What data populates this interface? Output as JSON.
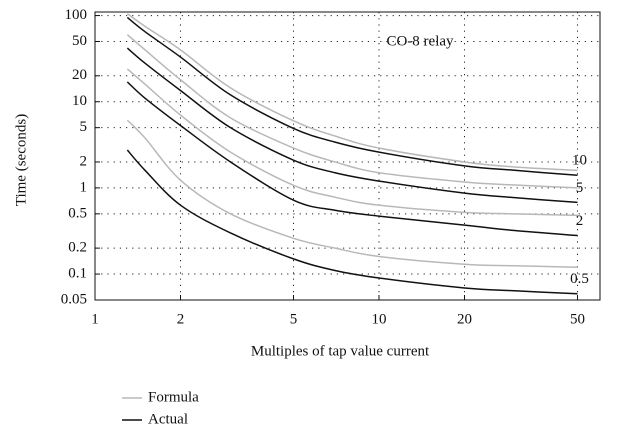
{
  "chart_data": {
    "type": "line",
    "xlabel": "Multiples of tap value current",
    "ylabel": "Time (seconds)",
    "annotation": "CO-8 relay",
    "x": [
      1.3,
      1.5,
      2,
      3,
      5,
      7,
      10,
      20,
      30,
      50
    ],
    "series": [
      {
        "name": "Formula",
        "color": "#b8b8b8",
        "values": [
          105,
          75,
          40,
          14.5,
          6,
          4,
          2.9,
          2.0,
          1.75,
          1.6
        ]
      },
      {
        "name": "Actual",
        "color": "#111111",
        "label": "10",
        "values": [
          95,
          65,
          33,
          12,
          4.9,
          3.4,
          2.6,
          1.8,
          1.6,
          1.4
        ]
      },
      {
        "name": "Formula",
        "color": "#b8b8b8",
        "values": [
          60,
          40,
          18,
          6.5,
          2.9,
          2,
          1.5,
          1.17,
          1.08,
          1.0
        ]
      },
      {
        "name": "Actual",
        "color": "#111111",
        "label": "5",
        "values": [
          42,
          28,
          13.5,
          5,
          2.1,
          1.5,
          1.2,
          0.87,
          0.77,
          0.68
        ]
      },
      {
        "name": "Formula",
        "color": "#b8b8b8",
        "values": [
          24,
          16,
          7,
          2.6,
          1.07,
          0.78,
          0.63,
          0.52,
          0.5,
          0.48
        ]
      },
      {
        "name": "Actual",
        "color": "#111111",
        "label": "2",
        "values": [
          17,
          11,
          5.3,
          2,
          0.72,
          0.55,
          0.47,
          0.37,
          0.32,
          0.28
        ]
      },
      {
        "name": "Formula",
        "color": "#b8b8b8",
        "values": [
          6.1,
          3.8,
          1.23,
          0.5,
          0.26,
          0.2,
          0.16,
          0.13,
          0.125,
          0.12
        ]
      },
      {
        "name": "Actual",
        "color": "#111111",
        "label": "0.5",
        "values": [
          2.75,
          1.6,
          0.63,
          0.3,
          0.15,
          0.11,
          0.09,
          0.069,
          0.064,
          0.059
        ]
      }
    ],
    "xlim": [
      1,
      60
    ],
    "xticks": [
      1,
      2,
      5,
      10,
      20,
      50
    ],
    "ylim": [
      0.05,
      110
    ],
    "yticks": [
      0.05,
      0.1,
      0.2,
      0.5,
      1,
      2,
      5,
      10,
      20,
      50,
      100
    ],
    "xscale": "log",
    "yscale": "log",
    "grid": true,
    "legend": "bottom-left"
  }
}
